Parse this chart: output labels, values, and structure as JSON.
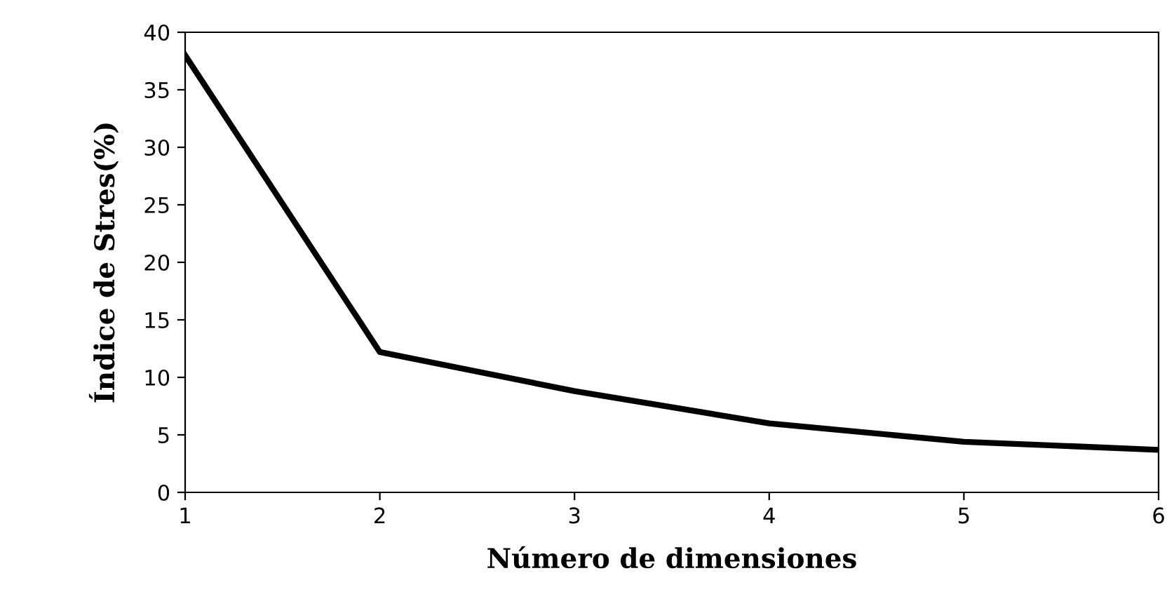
{
  "chart_data": {
    "type": "line",
    "xlabel": "Número de dimensiones",
    "ylabel": "Índice de Stres(%)",
    "x": [
      1,
      2,
      3,
      4,
      5,
      6
    ],
    "series": [
      {
        "color": "#000000",
        "values": [
          38,
          12.2,
          8.8,
          6.0,
          4.4,
          3.7
        ]
      }
    ],
    "xlim": [
      1,
      6
    ],
    "xticks": [
      1,
      2,
      3,
      4,
      5,
      6
    ],
    "ylim": [
      0,
      40
    ],
    "yticks": [
      0,
      5,
      10,
      15,
      20,
      25,
      30,
      35,
      40
    ],
    "grid": false,
    "legend": false,
    "marker": "none",
    "line_style": "solid"
  }
}
